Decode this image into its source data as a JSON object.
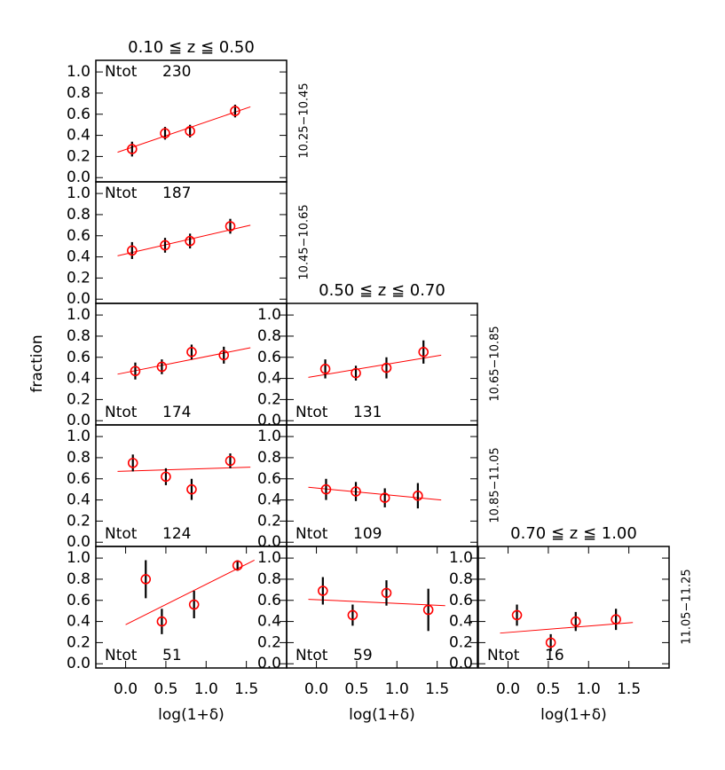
{
  "chart_data": [
    {
      "type": "scatter",
      "title": "0.10 ≦ z ≦ 0.50",
      "side_label": "10.25−10.45",
      "ntot_label": "Ntot",
      "ntot": 230,
      "ntot_position": "top",
      "xlim": [
        -0.37,
        2.0
      ],
      "ylim": [
        -0.04,
        1.11
      ],
      "yticks": [
        {
          "value": 0,
          "label": "0.0"
        },
        {
          "value": 0.2,
          "label": "0.2"
        },
        {
          "value": 0.4,
          "label": "0.4"
        },
        {
          "value": 0.6,
          "label": "0.6"
        },
        {
          "value": 0.8,
          "label": "0.8"
        },
        {
          "value": 1,
          "label": "1.0"
        }
      ],
      "series": [
        {
          "color": "#ff0000",
          "error_color": "#000000",
          "x": [
            0.08,
            0.49,
            0.8,
            1.36
          ],
          "values": [
            0.27,
            0.42,
            0.44,
            0.63
          ],
          "errors": [
            0.07,
            0.06,
            0.06,
            0.06
          ]
        }
      ],
      "fit": {
        "color": "#ff0000",
        "x": [
          -0.1,
          1.55
        ],
        "values": [
          0.24,
          0.67
        ]
      }
    },
    {
      "type": "scatter",
      "side_label": "10.45−10.65",
      "ntot_label": "Ntot",
      "ntot": 187,
      "ntot_position": "top",
      "xlim": [
        -0.37,
        2.0
      ],
      "ylim": [
        -0.04,
        1.11
      ],
      "yticks": [
        {
          "value": 0,
          "label": "0.0"
        },
        {
          "value": 0.2,
          "label": "0.2"
        },
        {
          "value": 0.4,
          "label": "0.4"
        },
        {
          "value": 0.6,
          "label": "0.6"
        },
        {
          "value": 0.8,
          "label": "0.8"
        },
        {
          "value": 1,
          "label": "1.0"
        }
      ],
      "series": [
        {
          "color": "#ff0000",
          "error_color": "#000000",
          "x": [
            0.08,
            0.49,
            0.8,
            1.3
          ],
          "values": [
            0.46,
            0.51,
            0.55,
            0.69
          ],
          "errors": [
            0.08,
            0.07,
            0.07,
            0.07
          ]
        }
      ],
      "fit": {
        "color": "#ff0000",
        "x": [
          -0.1,
          1.55
        ],
        "values": [
          0.41,
          0.7
        ]
      }
    },
    {
      "type": "scatter",
      "ylabel": "fraction",
      "ntot_label": "Ntot",
      "ntot": 174,
      "ntot_position": "bottom",
      "xlim": [
        -0.37,
        2.0
      ],
      "ylim": [
        -0.04,
        1.11
      ],
      "yticks": [
        {
          "value": 0,
          "label": "0.0"
        },
        {
          "value": 0.2,
          "label": "0.2"
        },
        {
          "value": 0.4,
          "label": "0.4"
        },
        {
          "value": 0.6,
          "label": "0.6"
        },
        {
          "value": 0.8,
          "label": "0.8"
        },
        {
          "value": 1,
          "label": "1.0"
        }
      ],
      "series": [
        {
          "color": "#ff0000",
          "error_color": "#000000",
          "x": [
            0.12,
            0.45,
            0.82,
            1.22
          ],
          "values": [
            0.47,
            0.51,
            0.65,
            0.62
          ],
          "errors": [
            0.08,
            0.07,
            0.07,
            0.08
          ]
        }
      ],
      "fit": {
        "color": "#ff0000",
        "x": [
          -0.1,
          1.55
        ],
        "values": [
          0.44,
          0.69
        ]
      }
    },
    {
      "type": "scatter",
      "title": "0.50 ≦ z ≦ 0.70",
      "side_label": "10.65−10.85",
      "ntot_label": "Ntot",
      "ntot": 131,
      "ntot_position": "bottom",
      "xlim": [
        -0.37,
        2.0
      ],
      "ylim": [
        -0.04,
        1.11
      ],
      "yticks": [
        {
          "value": 0,
          "label": "0.0"
        },
        {
          "value": 0.2,
          "label": "0.2"
        },
        {
          "value": 0.4,
          "label": "0.4"
        },
        {
          "value": 0.6,
          "label": "0.6"
        },
        {
          "value": 0.8,
          "label": "0.8"
        },
        {
          "value": 1,
          "label": "1.0"
        }
      ],
      "series": [
        {
          "color": "#ff0000",
          "error_color": "#000000",
          "x": [
            0.11,
            0.49,
            0.87,
            1.33
          ],
          "values": [
            0.49,
            0.45,
            0.5,
            0.65
          ],
          "errors": [
            0.09,
            0.07,
            0.1,
            0.11
          ]
        }
      ],
      "fit": {
        "color": "#ff0000",
        "x": [
          -0.1,
          1.55
        ],
        "values": [
          0.41,
          0.62
        ]
      }
    },
    {
      "type": "scatter",
      "ntot_label": "Ntot",
      "ntot": 124,
      "ntot_position": "bottom",
      "xlim": [
        -0.37,
        2.0
      ],
      "ylim": [
        -0.04,
        1.11
      ],
      "yticks": [
        {
          "value": 0,
          "label": "0.0"
        },
        {
          "value": 0.2,
          "label": "0.2"
        },
        {
          "value": 0.4,
          "label": "0.4"
        },
        {
          "value": 0.6,
          "label": "0.6"
        },
        {
          "value": 0.8,
          "label": "0.8"
        },
        {
          "value": 1,
          "label": "1.0"
        }
      ],
      "series": [
        {
          "color": "#ff0000",
          "error_color": "#000000",
          "x": [
            0.09,
            0.5,
            0.82,
            1.3
          ],
          "values": [
            0.75,
            0.62,
            0.5,
            0.77
          ],
          "errors": [
            0.08,
            0.08,
            0.1,
            0.07
          ]
        }
      ],
      "fit": {
        "color": "#ff0000",
        "x": [
          -0.1,
          1.55
        ],
        "values": [
          0.67,
          0.71
        ]
      }
    },
    {
      "type": "scatter",
      "side_label": "10.85−11.05",
      "ntot_label": "Ntot",
      "ntot": 109,
      "ntot_position": "bottom",
      "xlim": [
        -0.37,
        2.0
      ],
      "ylim": [
        -0.04,
        1.11
      ],
      "yticks": [
        {
          "value": 0,
          "label": "0.0"
        },
        {
          "value": 0.2,
          "label": "0.2"
        },
        {
          "value": 0.4,
          "label": "0.4"
        },
        {
          "value": 0.6,
          "label": "0.6"
        },
        {
          "value": 0.8,
          "label": "0.8"
        },
        {
          "value": 1,
          "label": "1.0"
        }
      ],
      "series": [
        {
          "color": "#ff0000",
          "error_color": "#000000",
          "x": [
            0.12,
            0.49,
            0.85,
            1.26
          ],
          "values": [
            0.5,
            0.48,
            0.42,
            0.44
          ],
          "errors": [
            0.1,
            0.09,
            0.09,
            0.12
          ]
        }
      ],
      "fit": {
        "color": "#ff0000",
        "x": [
          -0.1,
          1.55
        ],
        "values": [
          0.52,
          0.4
        ]
      }
    },
    {
      "type": "scatter",
      "ntot_label": "Ntot",
      "ntot": 51,
      "ntot_position": "bottom",
      "xlabel": "log(1+δ)",
      "xlim": [
        -0.37,
        2.0
      ],
      "ylim": [
        -0.04,
        1.11
      ],
      "xticks": [
        {
          "value": 0,
          "label": "0.0"
        },
        {
          "value": 0.5,
          "label": "0.5"
        },
        {
          "value": 1,
          "label": "1.0"
        },
        {
          "value": 1.5,
          "label": "1.5"
        }
      ],
      "yticks": [
        {
          "value": 0,
          "label": "0.0"
        },
        {
          "value": 0.2,
          "label": "0.2"
        },
        {
          "value": 0.4,
          "label": "0.4"
        },
        {
          "value": 0.6,
          "label": "0.6"
        },
        {
          "value": 0.8,
          "label": "0.8"
        },
        {
          "value": 1,
          "label": "1.0"
        }
      ],
      "series": [
        {
          "color": "#ff0000",
          "error_color": "#000000",
          "x": [
            0.25,
            0.45,
            0.85,
            1.39
          ],
          "values": [
            0.8,
            0.4,
            0.56,
            0.93
          ],
          "errors": [
            0.18,
            0.12,
            0.13,
            0.05
          ]
        }
      ],
      "fit": {
        "color": "#ff0000",
        "x": [
          0.0,
          1.6
        ],
        "values": [
          0.37,
          0.98
        ]
      }
    },
    {
      "type": "scatter",
      "ntot_label": "Ntot",
      "ntot": 59,
      "ntot_position": "bottom",
      "xlabel": "log(1+δ)",
      "xlim": [
        -0.37,
        2.0
      ],
      "ylim": [
        -0.04,
        1.11
      ],
      "xticks": [
        {
          "value": 0,
          "label": "0.0"
        },
        {
          "value": 0.5,
          "label": "0.5"
        },
        {
          "value": 1,
          "label": "1.0"
        },
        {
          "value": 1.5,
          "label": "1.5"
        }
      ],
      "yticks": [
        {
          "value": 0,
          "label": "0.0"
        },
        {
          "value": 0.2,
          "label": "0.2"
        },
        {
          "value": 0.4,
          "label": "0.4"
        },
        {
          "value": 0.6,
          "label": "0.6"
        },
        {
          "value": 0.8,
          "label": "0.8"
        },
        {
          "value": 1,
          "label": "1.0"
        }
      ],
      "series": [
        {
          "color": "#ff0000",
          "error_color": "#000000",
          "x": [
            0.08,
            0.45,
            0.87,
            1.39
          ],
          "values": [
            0.69,
            0.46,
            0.67,
            0.51
          ],
          "errors": [
            0.13,
            0.1,
            0.12,
            0.2
          ]
        }
      ],
      "fit": {
        "color": "#ff0000",
        "x": [
          -0.1,
          1.6
        ],
        "values": [
          0.61,
          0.55
        ]
      }
    },
    {
      "type": "scatter",
      "title": "0.70 ≦ z ≦ 1.00",
      "side_label": "11.05−11.25",
      "ntot_label": "Ntot",
      "ntot": 16,
      "ntot_position": "bottom",
      "xlabel": "log(1+δ)",
      "xlim": [
        -0.37,
        2.0
      ],
      "ylim": [
        -0.04,
        1.11
      ],
      "xticks": [
        {
          "value": 0,
          "label": "0.0"
        },
        {
          "value": 0.5,
          "label": "0.5"
        },
        {
          "value": 1,
          "label": "1.0"
        },
        {
          "value": 1.5,
          "label": "1.5"
        }
      ],
      "yticks": [
        {
          "value": 0,
          "label": "0.0"
        },
        {
          "value": 0.2,
          "label": "0.2"
        },
        {
          "value": 0.4,
          "label": "0.4"
        },
        {
          "value": 0.6,
          "label": "0.6"
        },
        {
          "value": 0.8,
          "label": "0.8"
        },
        {
          "value": 1,
          "label": "1.0"
        }
      ],
      "series": [
        {
          "color": "#ff0000",
          "error_color": "#000000",
          "x": [
            0.11,
            0.53,
            0.84,
            1.34
          ],
          "values": [
            0.46,
            0.2,
            0.4,
            0.42
          ],
          "errors": [
            0.1,
            0.08,
            0.09,
            0.1
          ]
        }
      ],
      "fit": {
        "color": "#ff0000",
        "x": [
          -0.1,
          1.55
        ],
        "values": [
          0.29,
          0.39
        ]
      }
    }
  ]
}
